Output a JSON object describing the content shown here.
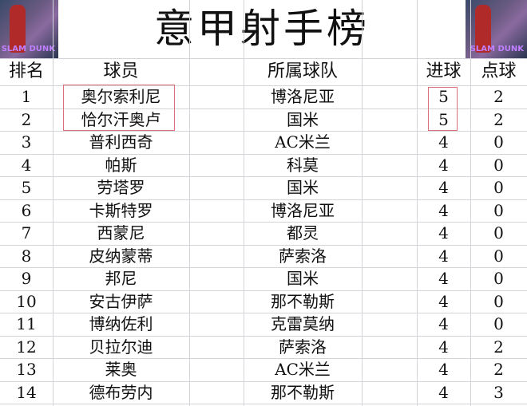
{
  "title": "意甲射手榜",
  "headers": {
    "rank": "排名",
    "player": "球员",
    "team": "所属球队",
    "goals": "进球",
    "penalties": "点球"
  },
  "corner_image_text": "SLAM DUNK",
  "highlight_color": "#d9707a",
  "rows": [
    {
      "rank": "1",
      "player": "奥尔索利尼",
      "team": "博洛尼亚",
      "goals": "5",
      "penalties": "2"
    },
    {
      "rank": "2",
      "player": "恰尔汗奥卢",
      "team": "国米",
      "goals": "5",
      "penalties": "2"
    },
    {
      "rank": "3",
      "player": "普利西奇",
      "team": "AC米兰",
      "goals": "4",
      "penalties": "0"
    },
    {
      "rank": "4",
      "player": "帕斯",
      "team": "科莫",
      "goals": "4",
      "penalties": "0"
    },
    {
      "rank": "5",
      "player": "劳塔罗",
      "team": "国米",
      "goals": "4",
      "penalties": "0"
    },
    {
      "rank": "6",
      "player": "卡斯特罗",
      "team": "博洛尼亚",
      "goals": "4",
      "penalties": "0"
    },
    {
      "rank": "7",
      "player": "西蒙尼",
      "team": "都灵",
      "goals": "4",
      "penalties": "0"
    },
    {
      "rank": "8",
      "player": "皮纳蒙蒂",
      "team": "萨索洛",
      "goals": "4",
      "penalties": "0"
    },
    {
      "rank": "9",
      "player": "邦尼",
      "team": "国米",
      "goals": "4",
      "penalties": "0"
    },
    {
      "rank": "10",
      "player": "安古伊萨",
      "team": "那不勒斯",
      "goals": "4",
      "penalties": "0"
    },
    {
      "rank": "11",
      "player": "博纳佐利",
      "team": "克雷莫纳",
      "goals": "4",
      "penalties": "0"
    },
    {
      "rank": "12",
      "player": "贝拉尔迪",
      "team": "萨索洛",
      "goals": "4",
      "penalties": "2"
    },
    {
      "rank": "13",
      "player": "莱奥",
      "team": "AC米兰",
      "goals": "4",
      "penalties": "2"
    },
    {
      "rank": "14",
      "player": "德布劳内",
      "team": "那不勒斯",
      "goals": "4",
      "penalties": "3"
    }
  ]
}
